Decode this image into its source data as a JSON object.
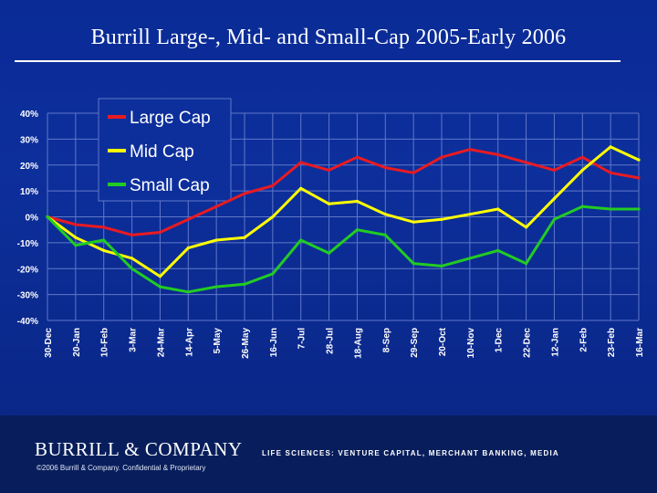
{
  "slide": {
    "title": "Burrill Large-, Mid- and Small-Cap 2005-Early 2006"
  },
  "footer": {
    "brand": "BURRILL & COMPANY",
    "copyright": "©2006 Burrill & Company. Confidential & Proprietary",
    "tagline": "LIFE SCIENCES: VENTURE CAPITAL, MERCHANT BANKING, MEDIA"
  },
  "colors": {
    "large_cap": "#e81b22",
    "mid_cap": "#ffff00",
    "small_cap": "#22cc22",
    "grid": "#5f78c8",
    "tick_text": "#ffffff"
  },
  "chart_data": {
    "type": "line",
    "title": "",
    "xlabel": "",
    "ylabel": "",
    "ylim": [
      -40,
      40
    ],
    "yticks": [
      40,
      30,
      20,
      10,
      0,
      -10,
      -20,
      -30,
      -40
    ],
    "ytick_labels": [
      "40%",
      "30%",
      "20%",
      "10%",
      "0%",
      "-10%",
      "-20%",
      "-30%",
      "-40%"
    ],
    "grid": true,
    "legend_position": "top-left",
    "categories": [
      "30-Dec",
      "20-Jan",
      "10-Feb",
      "3-Mar",
      "24-Mar",
      "14-Apr",
      "5-May",
      "26-May",
      "16-Jun",
      "7-Jul",
      "28-Jul",
      "18-Aug",
      "8-Sep",
      "29-Sep",
      "20-Oct",
      "10-Nov",
      "1-Dec",
      "22-Dec",
      "12-Jan",
      "2-Feb",
      "23-Feb",
      "16-Mar"
    ],
    "series": [
      {
        "name": "Large Cap",
        "color_key": "large_cap",
        "values": [
          0,
          -3,
          -4,
          -7,
          -6,
          -1,
          4,
          9,
          12,
          21,
          18,
          23,
          19,
          17,
          23,
          26,
          24,
          21,
          18,
          23,
          17,
          15
        ]
      },
      {
        "name": "Mid Cap",
        "color_key": "mid_cap",
        "values": [
          0,
          -8,
          -13,
          -16,
          -23,
          -12,
          -9,
          -8,
          0,
          11,
          5,
          6,
          1,
          -2,
          -1,
          1,
          3,
          -4,
          7,
          18,
          27,
          22
        ]
      },
      {
        "name": "Small Cap",
        "color_key": "small_cap",
        "values": [
          0,
          -11,
          -9,
          -20,
          -27,
          -29,
          -27,
          -26,
          -22,
          -9,
          -14,
          -5,
          -7,
          -18,
          -19,
          -16,
          -13,
          -18,
          -1,
          4,
          3,
          3
        ]
      }
    ]
  }
}
